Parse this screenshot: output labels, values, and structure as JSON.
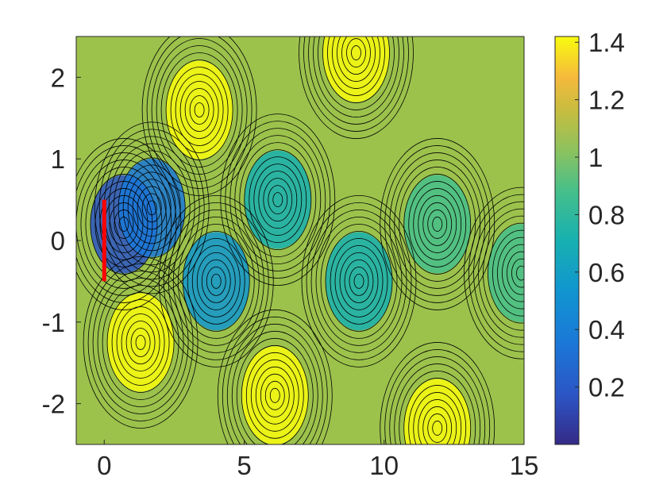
{
  "chart_data": {
    "type": "heatmap",
    "title": "",
    "xlabel": "",
    "ylabel": "",
    "xlim": [
      -1,
      15
    ],
    "ylim": [
      -2.5,
      2.5
    ],
    "x_ticks": [
      0,
      5,
      10,
      15
    ],
    "x_tick_labels": [
      "0",
      "5",
      "10",
      "15"
    ],
    "y_ticks": [
      2,
      1,
      0,
      -1,
      -2
    ],
    "y_tick_labels": [
      "2",
      "1",
      "0",
      "-1",
      "-2"
    ],
    "colorbar": {
      "colormap": "parula",
      "range": [
        0,
        1.42
      ],
      "ticks": [
        1.4,
        1.2,
        1,
        0.8,
        0.6,
        0.4,
        0.2
      ],
      "tick_labels": [
        "1.4",
        "1.2",
        "1",
        "0.8",
        "0.6",
        "0.4",
        "0.2"
      ]
    },
    "contour_lines": "black, dense",
    "obstacle": {
      "shape": "vertical plate",
      "color": "#ff0000",
      "x": 0,
      "y_range": [
        -0.5,
        0.5
      ]
    },
    "field_features": [
      {
        "x": 3.4,
        "y": 1.6,
        "value": 1.35
      },
      {
        "x": 1.3,
        "y": -1.25,
        "value": 1.38
      },
      {
        "x": 6.1,
        "y": -1.9,
        "value": 1.38
      },
      {
        "x": 9.0,
        "y": 2.3,
        "value": 1.35
      },
      {
        "x": 11.9,
        "y": -2.3,
        "value": 1.3
      },
      {
        "x": 4.0,
        "y": -0.5,
        "value": 0.45
      },
      {
        "x": 6.2,
        "y": 0.5,
        "value": 0.55
      },
      {
        "x": 9.1,
        "y": -0.5,
        "value": 0.7
      },
      {
        "x": 11.9,
        "y": 0.2,
        "value": 0.75
      },
      {
        "x": 14.9,
        "y": -0.4,
        "value": 0.8
      },
      {
        "x": 0.7,
        "y": 0.2,
        "value": 0.12
      },
      {
        "x": 1.7,
        "y": 0.4,
        "value": 0.2
      }
    ]
  }
}
